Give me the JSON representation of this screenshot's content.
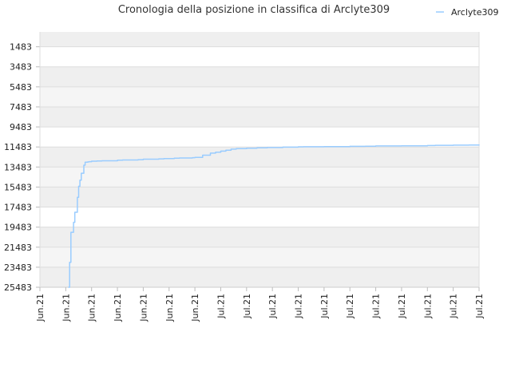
{
  "chart_data": {
    "type": "line",
    "title": "Cronologia della posizione in classifica di Arclyte309",
    "xlabel": "",
    "ylabel": "",
    "y_inverted": true,
    "ylim": [
      25483,
      0
    ],
    "y_ticks": [
      1483,
      3483,
      5483,
      7483,
      9483,
      11483,
      13483,
      15483,
      17483,
      19483,
      21483,
      23483,
      25483
    ],
    "x_tick_labels": [
      "Jun.21",
      "Jun.21",
      "Jun.21",
      "Jun.21",
      "Jun.21",
      "Jun.21",
      "Jun.21",
      "Jul.21",
      "Jul.21",
      "Jul.21",
      "Jul.21",
      "Jul.21",
      "Jul.21",
      "Jul.21",
      "Jul.21",
      "Jul.21",
      "Jul.21",
      "Jul.21"
    ],
    "legend": {
      "position": "top-right"
    },
    "grid": true,
    "series": [
      {
        "name": "Arclyte309",
        "color": "#99ccff",
        "x": [
          1.1,
          1.15,
          1.2,
          1.3,
          1.35,
          1.45,
          1.5,
          1.55,
          1.6,
          1.7,
          1.75,
          1.85,
          1.9,
          2.0,
          2.2,
          2.4,
          3.0,
          3.2,
          3.8,
          4.0,
          4.6,
          4.8,
          5.2,
          5.4,
          5.9,
          6.0,
          6.3,
          6.6,
          6.8,
          7.0,
          7.2,
          7.4,
          7.6,
          8.0,
          8.4,
          8.8,
          9.4,
          10.0,
          10.2,
          11.0,
          12.0,
          12.6,
          13.0,
          14.0,
          15.0,
          15.3,
          16.0,
          16.6,
          17.0
        ],
        "values": [
          25483,
          23000,
          20000,
          19000,
          18000,
          16500,
          15400,
          14800,
          14100,
          13300,
          13000,
          12970,
          12950,
          12900,
          12880,
          12860,
          12800,
          12780,
          12750,
          12700,
          12670,
          12640,
          12600,
          12580,
          12550,
          12530,
          12300,
          12100,
          12000,
          11900,
          11800,
          11700,
          11650,
          11600,
          11570,
          11540,
          11500,
          11470,
          11460,
          11440,
          11420,
          11400,
          11380,
          11360,
          11340,
          11320,
          11300,
          11290,
          11250
        ]
      }
    ]
  }
}
